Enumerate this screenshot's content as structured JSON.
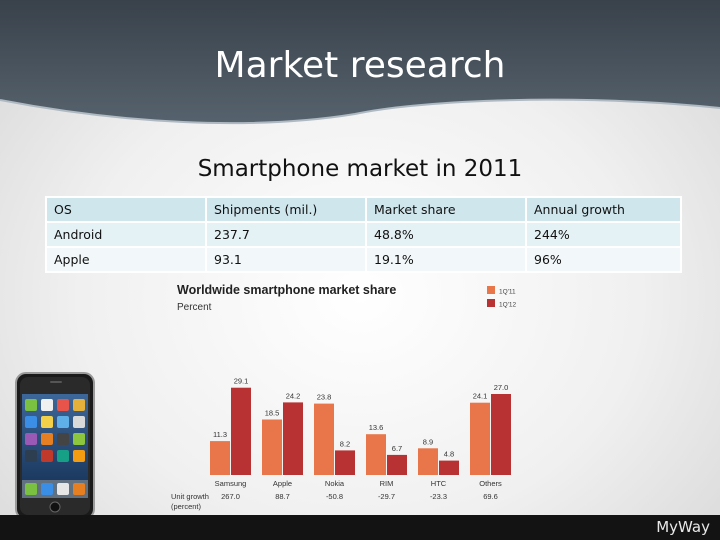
{
  "slide": {
    "title": "Market research",
    "subtitle": "Smartphone market in 2011",
    "brand": "MyWay"
  },
  "table": {
    "headers": [
      "OS",
      "Shipments (mil.)",
      "Market share",
      "Annual growth"
    ],
    "rows": [
      [
        "Android",
        "237.7",
        "48.8%",
        "244%"
      ],
      [
        "Apple",
        "93.1",
        "19.1%",
        "96%"
      ]
    ]
  },
  "chart_data": {
    "type": "bar",
    "title": "Worldwide smartphone market share",
    "subtitle": "Percent",
    "categories": [
      "Samsung",
      "Apple",
      "Nokia",
      "RIM",
      "HTC",
      "Others"
    ],
    "series": [
      {
        "name": "1Q'11",
        "values": [
          11.3,
          18.5,
          23.8,
          13.6,
          8.9,
          24.1
        ],
        "color": "#e8764a"
      },
      {
        "name": "1Q'12",
        "values": [
          29.1,
          24.2,
          8.2,
          6.7,
          4.8,
          27.0
        ],
        "color": "#b83233"
      }
    ],
    "value_labels": [
      [
        "11.3",
        "18.5",
        "23.8",
        "13.6",
        "8.9",
        "24.1"
      ],
      [
        "29.1",
        "24.2",
        "8.2",
        "6.7",
        "4.8",
        "27.0"
      ]
    ],
    "footer_label": "Unit growth",
    "footer_sublabel": "(percent)",
    "unit_growth": [
      "267.0",
      "88.7",
      "-50.8",
      "-29.7",
      "-23.3",
      "69.6"
    ],
    "ylim": [
      0,
      30
    ]
  },
  "colors": {
    "header": "#4a5560",
    "table_head": "#cfe6ed",
    "footer": "#131313"
  },
  "icons": {
    "phone": "smartphone-icon"
  }
}
